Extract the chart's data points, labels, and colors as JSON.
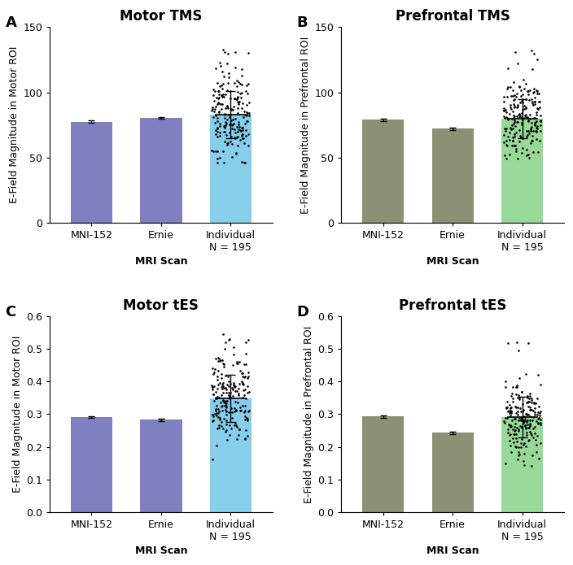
{
  "panels": [
    {
      "label": "A",
      "title": "Motor TMS",
      "ylabel": "E-Field Magnitude in Motor ROI",
      "xlabel": "MRI Scan",
      "ylim": [
        0,
        150
      ],
      "yticks": [
        0,
        50,
        100,
        150
      ],
      "bar_values": [
        77.5,
        80.5,
        83.0
      ],
      "bar_errors": [
        1.0,
        0.8,
        1.0
      ],
      "bar_colors": [
        "#8080C0",
        "#8080C0",
        "#87CEEB"
      ],
      "individual_mean": 83.0,
      "individual_std": 18.0,
      "individual_min": 46.0,
      "individual_max": 130.0,
      "outlier_max": 133.0,
      "n_points": 195
    },
    {
      "label": "B",
      "title": "Prefrontal TMS",
      "ylabel": "E-Field Magnitude in Prefrontal ROI",
      "xlabel": "MRI Scan",
      "ylim": [
        0,
        150
      ],
      "yticks": [
        0,
        50,
        100,
        150
      ],
      "bar_values": [
        79.0,
        72.0,
        79.5
      ],
      "bar_errors": [
        0.8,
        0.7,
        0.9
      ],
      "bar_colors": [
        "#8B9175",
        "#8B9175",
        "#98D898"
      ],
      "individual_mean": 79.5,
      "individual_std": 15.0,
      "individual_min": 44.0,
      "individual_max": 122.0,
      "outlier_max": 132.0,
      "n_points": 195
    },
    {
      "label": "C",
      "title": "Motor tES",
      "ylabel": "E-Field Magnitude in Motor ROI",
      "xlabel": "MRI Scan",
      "ylim": [
        0,
        0.6
      ],
      "yticks": [
        0.0,
        0.1,
        0.2,
        0.3,
        0.4,
        0.5,
        0.6
      ],
      "bar_values": [
        0.291,
        0.283,
        0.348
      ],
      "bar_errors": [
        0.003,
        0.003,
        0.005
      ],
      "bar_colors": [
        "#8080C0",
        "#8080C0",
        "#87CEEB"
      ],
      "individual_mean": 0.348,
      "individual_std": 0.072,
      "individual_min": 0.155,
      "individual_max": 0.52,
      "outlier_max": 0.565,
      "n_points": 195
    },
    {
      "label": "D",
      "title": "Prefrontal tES",
      "ylabel": "E-Field Magnitude in Prefrontal ROI",
      "xlabel": "MRI Scan",
      "ylim": [
        0,
        0.6
      ],
      "yticks": [
        0.0,
        0.1,
        0.2,
        0.3,
        0.4,
        0.5,
        0.6
      ],
      "bar_values": [
        0.293,
        0.243,
        0.292
      ],
      "bar_errors": [
        0.004,
        0.003,
        0.005
      ],
      "bar_colors": [
        "#8B9175",
        "#8B9175",
        "#98D898"
      ],
      "individual_mean": 0.292,
      "individual_std": 0.062,
      "individual_min": 0.13,
      "individual_max": 0.47,
      "outlier_max": 0.52,
      "n_points": 195
    }
  ],
  "categories": [
    "MNI-152",
    "Ernie",
    "Individual\nN = 195"
  ],
  "bar_width": 0.6,
  "background_color": "#ffffff",
  "title_fontsize": 12,
  "tick_fontsize": 9,
  "axis_label_fontsize": 9
}
